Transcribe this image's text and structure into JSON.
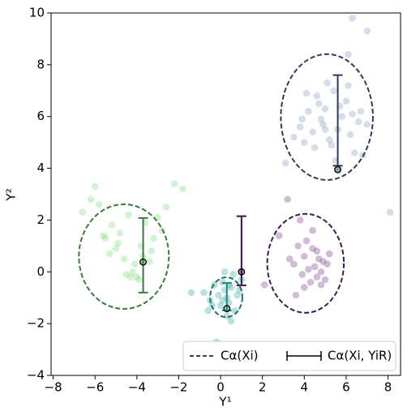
{
  "chart_data": {
    "type": "scatter",
    "xlabel": "Y¹",
    "ylabel": "Y²",
    "xlim": [
      -8.1,
      8.6
    ],
    "ylim": [
      -4,
      10
    ],
    "xticks": [
      {
        "value": -8,
        "label": "−8"
      },
      {
        "value": -6,
        "label": "−6"
      },
      {
        "value": -4,
        "label": "−4"
      },
      {
        "value": -2,
        "label": "−2"
      },
      0,
      2,
      4,
      6,
      8
    ],
    "yticks": [
      {
        "value": -4,
        "label": "−4"
      },
      {
        "value": -2,
        "label": "−2"
      },
      0,
      2,
      4,
      6,
      8,
      10
    ],
    "series": [
      {
        "color": "#8c9cc4",
        "x": [
          3.5,
          3.8,
          4.0,
          4.2,
          4.4,
          4.6,
          4.8,
          5.0,
          5.2,
          5.4,
          5.6,
          5.8,
          6.0,
          6.2,
          6.4,
          6.6,
          7.0,
          4.5,
          5.1,
          5.7,
          6.3,
          3.9,
          4.7,
          5.3,
          6.1,
          6.3,
          7.0,
          6.1,
          8.1,
          3.1,
          5.0,
          6.8,
          4.1,
          5.5,
          4.9,
          6.7
        ],
        "y": [
          5.2,
          5.6,
          5.0,
          6.2,
          5.4,
          6.8,
          5.9,
          6.3,
          5.1,
          7.0,
          5.5,
          6.0,
          6.6,
          5.3,
          4.6,
          5.8,
          5.7,
          4.8,
          7.3,
          6.4,
          6.1,
          5.9,
          6.5,
          4.9,
          7.2,
          9.8,
          9.3,
          8.4,
          2.3,
          4.2,
          5.5,
          4.5,
          6.9,
          4.3,
          5.7,
          6.2
        ]
      },
      {
        "color": "#7ddc7d",
        "x": [
          -6.6,
          -6.0,
          -5.8,
          -5.5,
          -5.2,
          -5.0,
          -4.8,
          -4.6,
          -4.4,
          -4.2,
          -4.0,
          -3.8,
          -3.6,
          -3.4,
          -3.2,
          -3.0,
          -2.8,
          -2.6,
          -2.2,
          -1.8,
          -4.5,
          -4.1,
          -3.9,
          -5.3,
          -4.9,
          -3.3,
          -6.2,
          -4.3,
          -3.7,
          -5.6
        ],
        "y": [
          2.3,
          3.3,
          2.6,
          1.3,
          1.8,
          0.9,
          1.5,
          0.5,
          2.2,
          0.0,
          -0.2,
          1.0,
          1.9,
          0.4,
          1.3,
          2.1,
          1.6,
          2.5,
          3.4,
          3.2,
          -0.1,
          0.3,
          -0.3,
          0.7,
          1.1,
          0.8,
          2.8,
          -0.2,
          0.6,
          1.4
        ]
      },
      {
        "color": "#3aa8a0",
        "x": [
          -1.4,
          -0.8,
          -0.5,
          -0.3,
          -0.1,
          0.0,
          0.1,
          0.2,
          0.3,
          0.4,
          0.5,
          0.6,
          0.7,
          0.8,
          1.0,
          -0.2,
          0.3,
          0.5,
          0.2,
          -0.6,
          0.9,
          0.4,
          -0.4,
          0.1
        ],
        "y": [
          -0.8,
          -0.8,
          -1.1,
          -0.5,
          -0.9,
          -1.3,
          -0.4,
          -0.7,
          -1.0,
          -1.2,
          -0.6,
          -0.1,
          -1.5,
          -0.9,
          -0.3,
          -2.7,
          -1.7,
          -1.9,
          0.0,
          -1.5,
          -0.7,
          -0.5,
          -1.3,
          -1.1
        ],
        "size": 6
      },
      {
        "color": "#7b3f8c",
        "x": [
          2.1,
          2.8,
          3.2,
          3.5,
          3.7,
          3.9,
          4.0,
          4.1,
          4.2,
          4.3,
          4.4,
          4.5,
          4.6,
          4.7,
          4.8,
          4.9,
          5.0,
          5.1,
          5.2,
          3.6,
          4.0,
          4.4,
          4.8,
          3.3,
          4.6,
          3.8
        ],
        "y": [
          -0.5,
          1.4,
          2.8,
          0.3,
          1.0,
          -0.1,
          0.6,
          1.2,
          0.1,
          -0.4,
          0.9,
          0.2,
          -0.2,
          0.5,
          0.0,
          0.4,
          -0.3,
          0.3,
          0.7,
          -0.9,
          -0.6,
          1.6,
          -0.5,
          0.5,
          0.8,
          2.0
        ]
      }
    ],
    "ellipses": [
      {
        "color": "#2d3a5a",
        "cx": 5.08,
        "cy": 5.98,
        "rx": 2.2,
        "ry": 2.43
      },
      {
        "color": "#3a7a3a",
        "cx": -4.62,
        "cy": 0.59,
        "rx": 2.15,
        "ry": 2.02
      },
      {
        "color": "#3d1a4d",
        "cx": 4.06,
        "cy": 0.33,
        "rx": 1.83,
        "ry": 1.91
      },
      {
        "color": "#1f6f6a",
        "cx": 0.27,
        "cy": -0.98,
        "rx": 0.77,
        "ry": 0.77
      }
    ],
    "intervals": [
      {
        "color": "#2d3a5a",
        "x": 5.6,
        "y": 3.95,
        "low": 4.1,
        "high": 7.6
      },
      {
        "color": "#3a7a3a",
        "x": -3.7,
        "y": 0.38,
        "low": -0.8,
        "high": 2.08
      },
      {
        "color": "#3d0f4d",
        "x": 1.0,
        "y": 0.0,
        "low": -0.52,
        "high": 2.15
      },
      {
        "color": "#1f8a80",
        "x": 0.3,
        "y": -1.42,
        "low": -1.49,
        "high": -0.43
      }
    ],
    "legend": [
      "Cα(Xi)",
      "Cα(Xi, YiR)"
    ],
    "legend_position": "lower right"
  }
}
